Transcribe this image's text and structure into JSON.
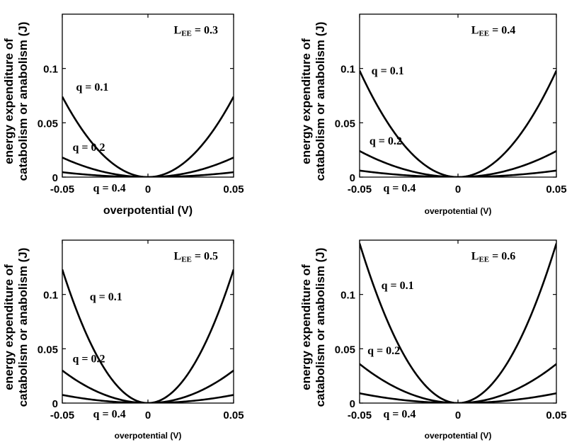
{
  "chart_data": [
    {
      "type": "line",
      "annotation": {
        "L": "L",
        "sub": "EE",
        "rest": " = 0.3"
      },
      "xlabel": "overpotential (V)",
      "ylabel": [
        "energy expenditure of",
        "catabolism or anabolism (J)"
      ],
      "xlim": [
        -0.05,
        0.05
      ],
      "ylim": [
        0,
        0.15
      ],
      "xticks": [
        -0.05,
        0,
        0.05
      ],
      "xtick_labels": [
        "-0.05",
        "0",
        "0.05"
      ],
      "yticks": [
        0,
        0.05,
        0.1
      ],
      "ytick_labels": [
        "0",
        "0.05",
        "0.1"
      ],
      "series": [
        {
          "name": "q = 0.1",
          "x": [
            -0.05,
            -0.025,
            0,
            0.025,
            0.05
          ],
          "y": [
            0.074,
            0.0185,
            0,
            0.0185,
            0.074
          ]
        },
        {
          "name": "q = 0.2",
          "x": [
            -0.05,
            -0.025,
            0,
            0.025,
            0.05
          ],
          "y": [
            0.018,
            0.0045,
            0,
            0.0045,
            0.018
          ]
        },
        {
          "name": "q = 0.4",
          "x": [
            -0.05,
            -0.025,
            0,
            0.025,
            0.05
          ],
          "y": [
            0.0045,
            0.0011,
            0,
            0.0011,
            0.0045
          ]
        }
      ]
    },
    {
      "type": "line",
      "annotation": {
        "L": "L",
        "sub": "EE",
        "rest": " = 0.4"
      },
      "xlabel": "overpotential (V)",
      "ylabel": [
        "energy expenditure of",
        "catabolism or anabolism (J)"
      ],
      "xlim": [
        -0.05,
        0.05
      ],
      "ylim": [
        0,
        0.15
      ],
      "xticks": [
        -0.05,
        0,
        0.05
      ],
      "xtick_labels": [
        "-0.05",
        "0",
        "0.05"
      ],
      "yticks": [
        0,
        0.05,
        0.1
      ],
      "ytick_labels": [
        "0",
        "0.05",
        "0.1"
      ],
      "series": [
        {
          "name": "q = 0.1",
          "x": [
            -0.05,
            -0.025,
            0,
            0.025,
            0.05
          ],
          "y": [
            0.098,
            0.0245,
            0,
            0.0245,
            0.098
          ]
        },
        {
          "name": "q = 0.2",
          "x": [
            -0.05,
            -0.025,
            0,
            0.025,
            0.05
          ],
          "y": [
            0.024,
            0.006,
            0,
            0.006,
            0.024
          ]
        },
        {
          "name": "q = 0.4",
          "x": [
            -0.05,
            -0.025,
            0,
            0.025,
            0.05
          ],
          "y": [
            0.006,
            0.0015,
            0,
            0.0015,
            0.006
          ]
        }
      ]
    },
    {
      "type": "line",
      "annotation": {
        "L": "L",
        "sub": "EE",
        "rest": " = 0.5"
      },
      "xlabel": "overpotential (V)",
      "ylabel": [
        "energy expenditure of",
        "catabolism or anabolism (J)"
      ],
      "xlim": [
        -0.05,
        0.05
      ],
      "ylim": [
        0,
        0.15
      ],
      "xticks": [
        -0.05,
        0,
        0.05
      ],
      "xtick_labels": [
        "-0.05",
        "0",
        "0.05"
      ],
      "yticks": [
        0,
        0.05,
        0.1
      ],
      "ytick_labels": [
        "0",
        "0.05",
        "0.1"
      ],
      "series": [
        {
          "name": "q = 0.1",
          "x": [
            -0.05,
            -0.025,
            0,
            0.025,
            0.05
          ],
          "y": [
            0.123,
            0.0308,
            0,
            0.0308,
            0.123
          ]
        },
        {
          "name": "q = 0.2",
          "x": [
            -0.05,
            -0.025,
            0,
            0.025,
            0.05
          ],
          "y": [
            0.03,
            0.0075,
            0,
            0.0075,
            0.03
          ]
        },
        {
          "name": "q = 0.4",
          "x": [
            -0.05,
            -0.025,
            0,
            0.025,
            0.05
          ],
          "y": [
            0.0075,
            0.0019,
            0,
            0.0019,
            0.0075
          ]
        }
      ]
    },
    {
      "type": "line",
      "annotation": {
        "L": "L",
        "sub": "EE",
        "rest": " = 0.6"
      },
      "xlabel": "overpotential (V)",
      "ylabel": [
        "energy expenditure of",
        "catabolism or anabolism (J)"
      ],
      "xlim": [
        -0.05,
        0.05
      ],
      "ylim": [
        0,
        0.15
      ],
      "xticks": [
        -0.05,
        0,
        0.05
      ],
      "xtick_labels": [
        "-0.05",
        "0",
        "0.05"
      ],
      "yticks": [
        0,
        0.05,
        0.1
      ],
      "ytick_labels": [
        "0",
        "0.05",
        "0.1"
      ],
      "series": [
        {
          "name": "q = 0.1",
          "x": [
            -0.05,
            -0.025,
            0,
            0.025,
            0.05
          ],
          "y": [
            0.147,
            0.0368,
            0,
            0.0368,
            0.147
          ]
        },
        {
          "name": "q = 0.2",
          "x": [
            -0.05,
            -0.025,
            0,
            0.025,
            0.05
          ],
          "y": [
            0.036,
            0.009,
            0,
            0.009,
            0.036
          ]
        },
        {
          "name": "q = 0.4",
          "x": [
            -0.05,
            -0.025,
            0,
            0.025,
            0.05
          ],
          "y": [
            0.009,
            0.0022,
            0,
            0.0022,
            0.009
          ]
        }
      ]
    }
  ]
}
